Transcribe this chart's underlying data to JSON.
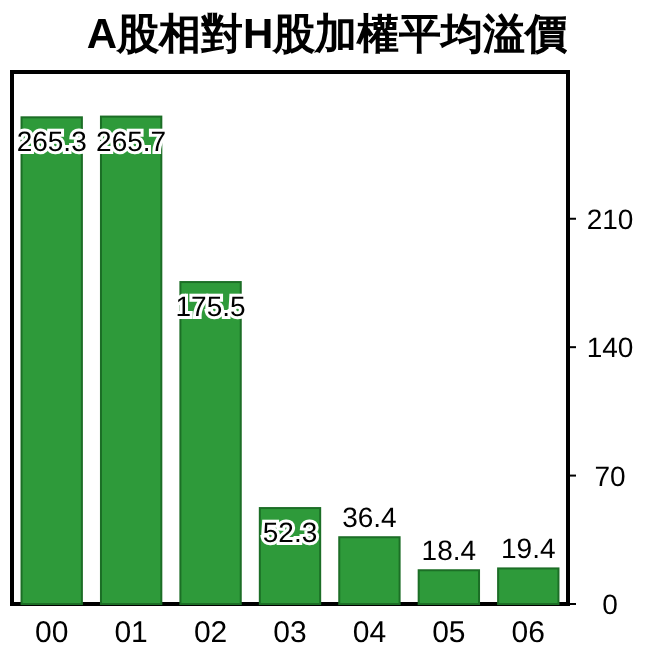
{
  "chart_data": {
    "type": "bar",
    "title": "A股相對H股加權平均溢價",
    "categories": [
      "00",
      "01",
      "02",
      "03",
      "04",
      "05",
      "06"
    ],
    "values": [
      265.3,
      265.7,
      175.5,
      52.3,
      36.4,
      18.4,
      19.4
    ],
    "color": "#2e9a3a",
    "ylim": [
      0,
      290
    ],
    "yticks": [
      0,
      70,
      140,
      210
    ],
    "data_labels": true
  }
}
